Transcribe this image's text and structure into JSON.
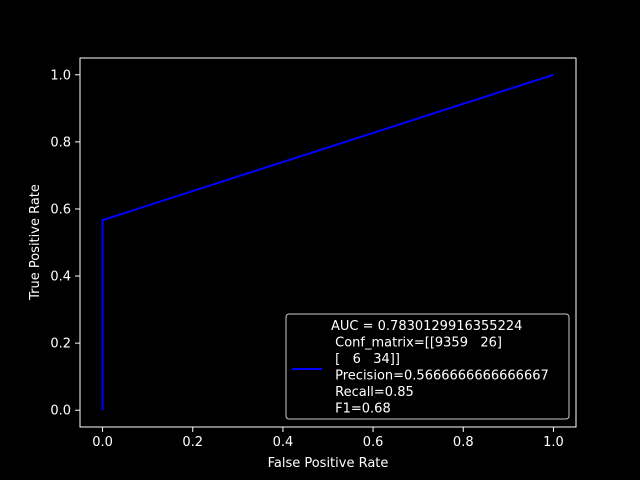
{
  "chart_data": {
    "type": "line",
    "title": "",
    "xlabel": "False Positive Rate",
    "ylabel": "True Positive Rate",
    "xlim": [
      -0.05,
      1.05
    ],
    "ylim": [
      -0.05,
      1.05
    ],
    "xticks": [
      0.0,
      0.2,
      0.4,
      0.6,
      0.8,
      1.0
    ],
    "yticks": [
      0.0,
      0.2,
      0.4,
      0.6,
      0.8,
      1.0
    ],
    "xtick_labels": [
      "0.0",
      "0.2",
      "0.4",
      "0.6",
      "0.8",
      "1.0"
    ],
    "ytick_labels": [
      "0.0",
      "0.2",
      "0.4",
      "0.6",
      "0.8",
      "1.0"
    ],
    "grid": false,
    "legend_position": "lower right",
    "series": [
      {
        "name": "AUC = 0.7830129916355224\n Conf_matrix=[[9359   26]\n [   6   34]]\n Precision=0.5666666666666667\n Recall=0.85\n F1=0.68",
        "color": "#0000ff",
        "x": [
          0.0,
          0.0,
          1.0
        ],
        "y": [
          0.0,
          0.5667,
          1.0
        ]
      }
    ],
    "legend_lines": [
      "AUC = 0.7830129916355224",
      " Conf_matrix=[[9359   26]",
      " [   6   34]]",
      " Precision=0.5666666666666667",
      " Recall=0.85",
      " F1=0.68"
    ]
  },
  "colors": {
    "background": "#000000",
    "foreground": "#ffffff",
    "series": "#0000ff"
  }
}
